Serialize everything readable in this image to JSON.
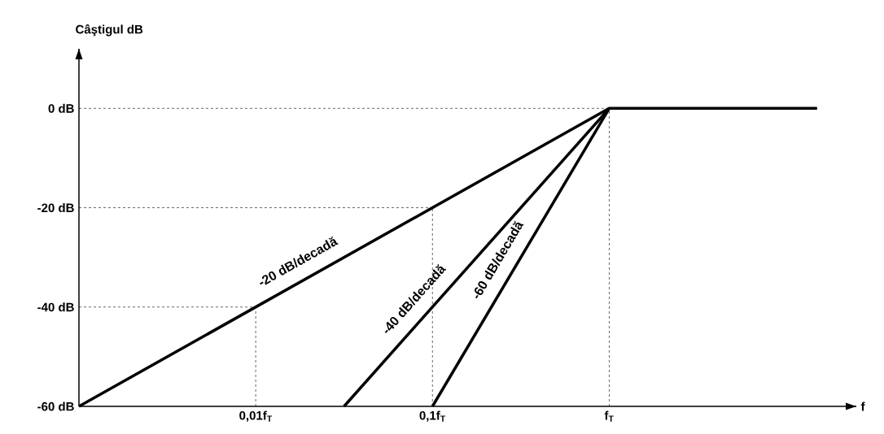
{
  "chart_data": {
    "type": "line",
    "ylabel": "Câştigul dB",
    "xlabel": "f",
    "log": "x",
    "xlim": [
      0.001,
      25
    ],
    "ylim": [
      -60,
      12
    ],
    "xticks": [
      {
        "value": 0.01,
        "label": "0,01f$_{T}$"
      },
      {
        "value": 0.1,
        "label": "0,1f$_{T}$"
      },
      {
        "value": 1,
        "label": "f$_{T}$"
      }
    ],
    "yticks": [
      {
        "value": 0,
        "label": "0 dB"
      },
      {
        "value": -20,
        "label": "-20 dB"
      },
      {
        "value": -40,
        "label": "-40 dB"
      },
      {
        "value": -60,
        "label": "-60 dB"
      }
    ],
    "marker": "none",
    "line_style": "solid",
    "series": [
      {
        "color": "#000000",
        "x": [
          0.001,
          1,
          15
        ],
        "values": [
          -60,
          0,
          0
        ]
      },
      {
        "color": "#000000",
        "x": [
          0.0316,
          1
        ],
        "values": [
          -60,
          0
        ]
      },
      {
        "color": "#000000",
        "x": [
          0.1,
          1
        ],
        "values": [
          -60,
          0
        ]
      }
    ],
    "ref_lines": [
      {
        "axis": "y",
        "value": 0,
        "line_style": "dashed"
      },
      {
        "axis": "y",
        "value": -20,
        "line_style": "dashed"
      },
      {
        "axis": "y",
        "value": -40,
        "line_style": "dashed"
      },
      {
        "axis": "x",
        "value": 0.01,
        "line_style": "dashed"
      },
      {
        "axis": "x",
        "value": 0.1,
        "line_style": "dashed"
      },
      {
        "axis": "x",
        "value": 1,
        "line_style": "dashed"
      }
    ],
    "annotations": [
      {
        "text": "-20 dB/decadă",
        "x": 0.0195,
        "y": -34.2
      },
      {
        "text": "-40 dB/decadă",
        "x": 0.094,
        "y": -41
      },
      {
        "text": "-60 dB/decadă",
        "x": 0.288,
        "y": -32.5
      }
    ]
  }
}
